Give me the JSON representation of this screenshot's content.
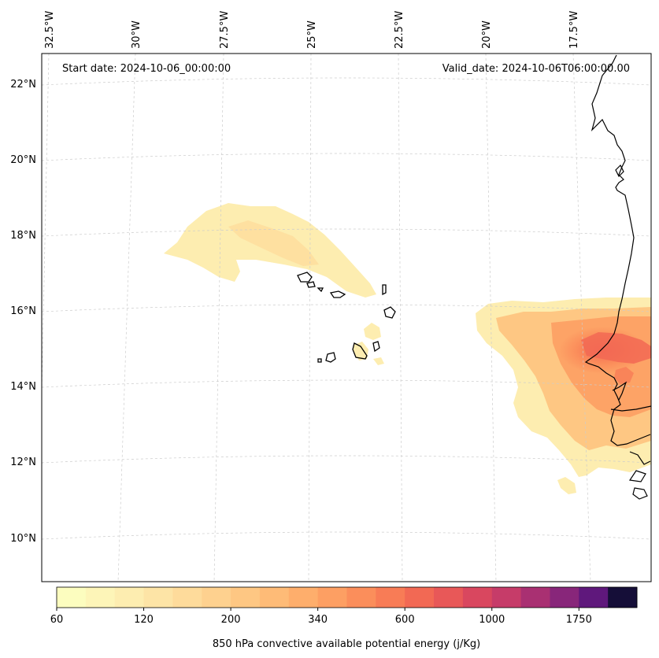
{
  "header": {
    "start_date": "Start date: 2024-10-06_00:00:00",
    "valid_date": "Valid_date: 2024-10-06T06:00:00.00"
  },
  "longitude_labels": [
    "32.5°W",
    "30°W",
    "27.5°W",
    "25°W",
    "22.5°W",
    "20°W",
    "17.5°W"
  ],
  "latitude_labels": [
    "22°N",
    "20°N",
    "18°N",
    "16°N",
    "14°N",
    "12°N",
    "10°N"
  ],
  "colorbar": {
    "title": "850 hPa convective available potential energy (j/Kg)",
    "tick_labels": [
      "60",
      "120",
      "200",
      "340",
      "600",
      "1000",
      "1750"
    ],
    "colors": [
      "#fcfdbf",
      "#fdf5b8",
      "#fdedb0",
      "#fde4a6",
      "#fedb9b",
      "#fed18f",
      "#fec783",
      "#febb77",
      "#feae6c",
      "#fd9f63",
      "#fb8e5b",
      "#f87c56",
      "#f26954",
      "#e85858",
      "#d9475f",
      "#c63c69",
      "#a93072",
      "#88267a",
      "#5f187c",
      "#150e38"
    ]
  },
  "colors": {
    "coastline": "#000000",
    "gridline": "#cccccc",
    "map_frame": "#000000"
  }
}
